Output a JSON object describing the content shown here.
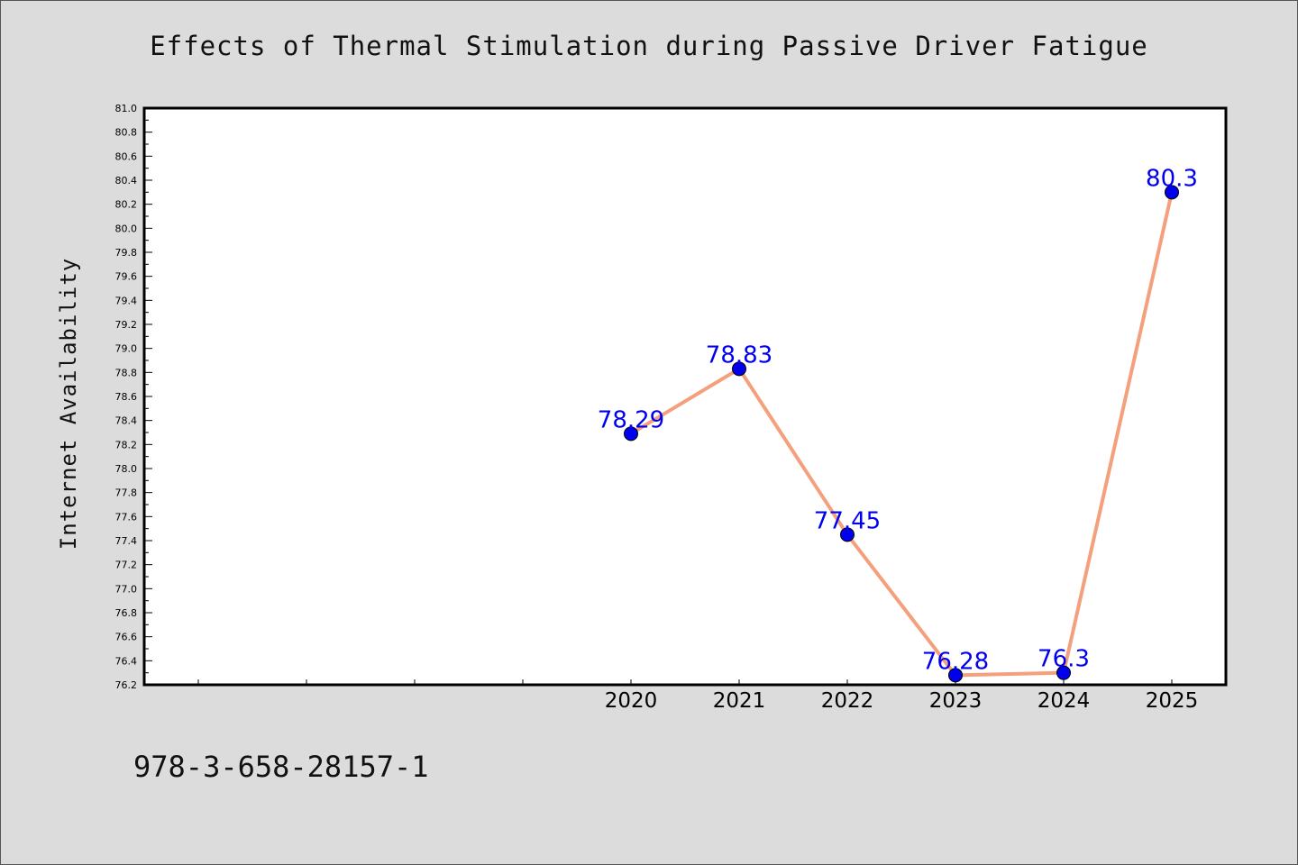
{
  "chart_data": {
    "type": "line",
    "title": "Effects of Thermal Stimulation during Passive Driver Fatigue",
    "xlabel": "",
    "ylabel": "Internet Availability",
    "categories": [
      "2020",
      "2021",
      "2022",
      "2023",
      "2024",
      "2025"
    ],
    "series": [
      {
        "values": [
          78.29,
          78.83,
          77.45,
          76.28,
          76.3,
          80.3
        ],
        "labels": [
          "78.29",
          "78.83",
          "77.45",
          "76.28",
          "76.3",
          "80.3"
        ]
      }
    ],
    "x_range": [
      2015.5,
      2025.5
    ],
    "ylim": [
      76.2,
      81.0
    ],
    "y_tick_step": 0.2,
    "grid": false,
    "legend": "none",
    "colors": {
      "line": "#f4a07c",
      "marker": "#0000ee",
      "label": "#0000ee"
    }
  },
  "footer_text": "978-3-658-28157-1"
}
